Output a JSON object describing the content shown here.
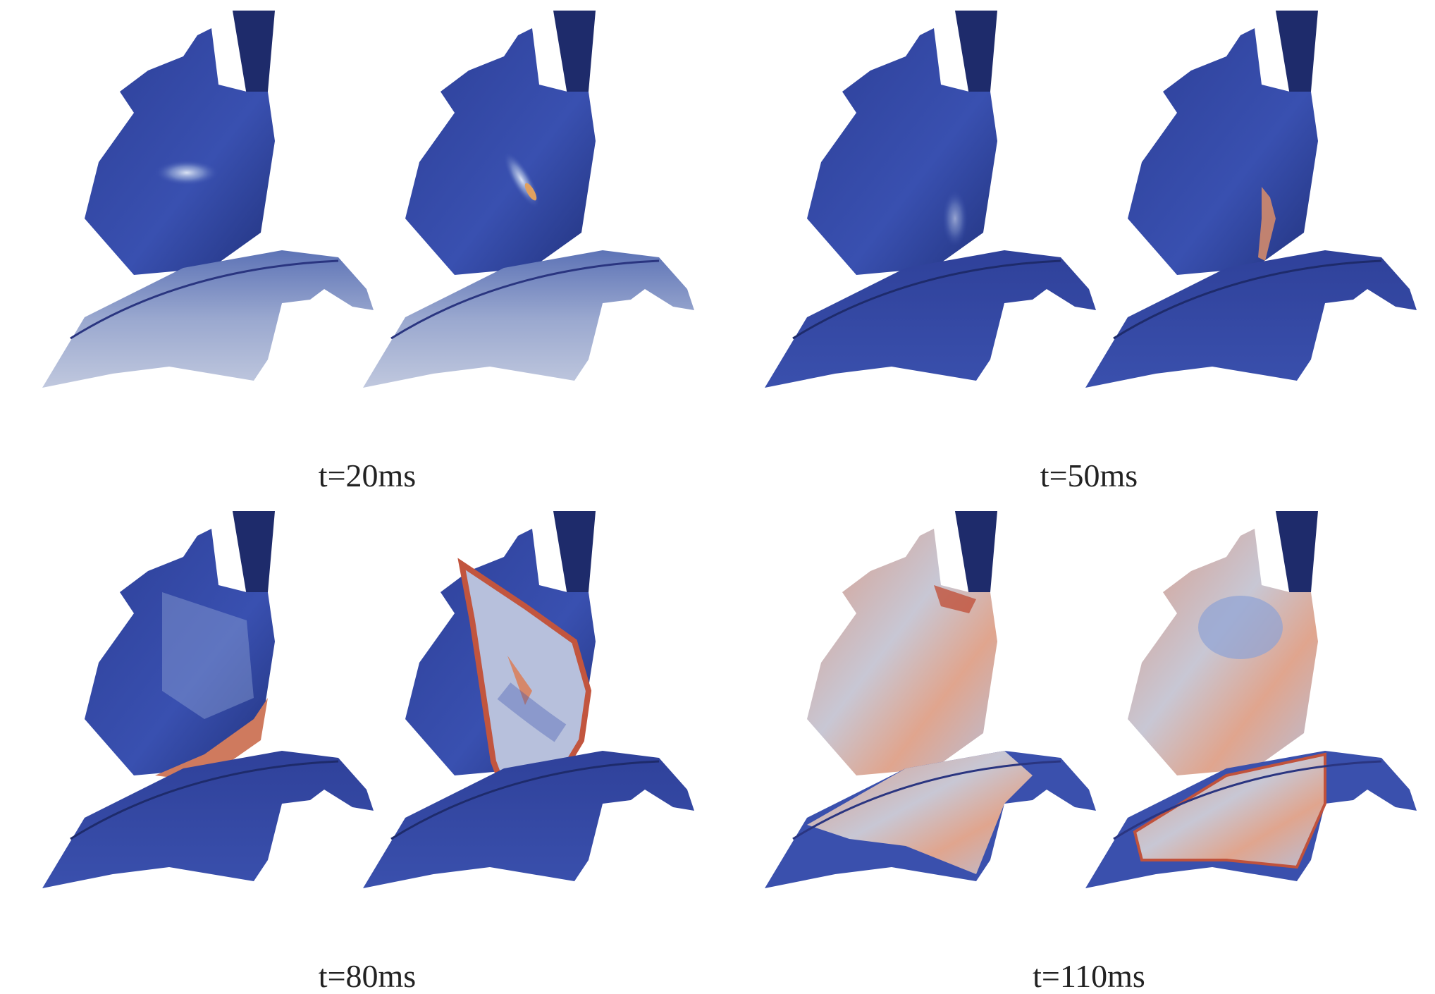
{
  "figure": {
    "panels": [
      {
        "caption": "t=20ms"
      },
      {
        "caption": "t=50ms"
      },
      {
        "caption": "t=80ms"
      },
      {
        "caption": "t=110ms"
      }
    ]
  }
}
